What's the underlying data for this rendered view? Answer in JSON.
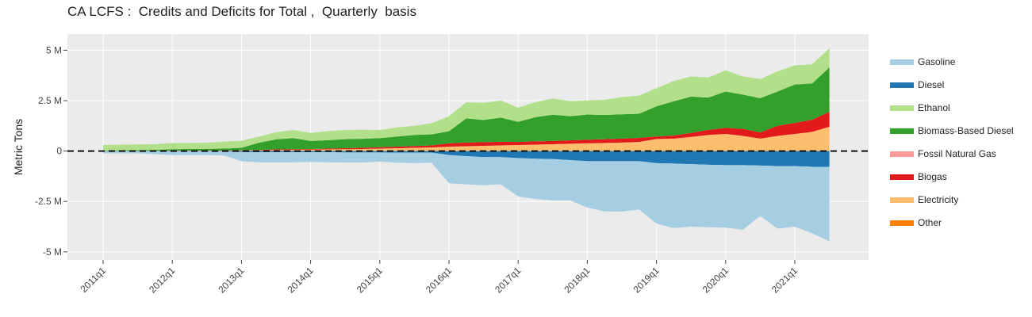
{
  "chart_data": {
    "type": "area",
    "title": "CA LCFS :  Credits and Deficits for Total ,  Quarterly  basis",
    "ylabel": "Metric Tons",
    "xlabel": "",
    "ylim": [
      -5.4,
      5.8
    ],
    "y_ticks": [
      {
        "value": 5,
        "label": "5 M"
      },
      {
        "value": 2.5,
        "label": "2.5 M"
      },
      {
        "value": 0,
        "label": "0"
      },
      {
        "value": -2.5,
        "label": "-2.5 M"
      },
      {
        "value": -5,
        "label": "-5 M"
      }
    ],
    "x_tick_labels": [
      "2011q1",
      "2012q1",
      "2013q1",
      "2014q1",
      "2015q1",
      "2016q1",
      "2017q1",
      "2018q1",
      "2019q1",
      "2020q1",
      "2021q1"
    ],
    "x": [
      "2011q1",
      "2011q2",
      "2011q3",
      "2011q4",
      "2012q1",
      "2012q2",
      "2012q3",
      "2012q4",
      "2013q1",
      "2013q2",
      "2013q3",
      "2013q4",
      "2014q1",
      "2014q2",
      "2014q3",
      "2014q4",
      "2015q1",
      "2015q2",
      "2015q3",
      "2015q4",
      "2016q1",
      "2016q2",
      "2016q3",
      "2016q4",
      "2017q1",
      "2017q2",
      "2017q3",
      "2017q4",
      "2018q1",
      "2018q2",
      "2018q3",
      "2018q4",
      "2019q1",
      "2019q2",
      "2019q3",
      "2019q4",
      "2020q1",
      "2020q2",
      "2020q3",
      "2020q4",
      "2021q1",
      "2021q2",
      "2021q3"
    ],
    "zero_line": "dashed",
    "grid": true,
    "legend_position": "right",
    "credit_series": [
      {
        "name": "Electricity",
        "color": "#fdbf6f",
        "values": [
          0.01,
          0.01,
          0.01,
          0.01,
          0.02,
          0.02,
          0.02,
          0.02,
          0.03,
          0.04,
          0.05,
          0.06,
          0.07,
          0.08,
          0.09,
          0.1,
          0.12,
          0.14,
          0.16,
          0.18,
          0.22,
          0.24,
          0.26,
          0.28,
          0.3,
          0.32,
          0.34,
          0.36,
          0.38,
          0.4,
          0.42,
          0.45,
          0.6,
          0.62,
          0.7,
          0.8,
          0.85,
          0.75,
          0.62,
          0.75,
          0.85,
          0.95,
          1.2
        ]
      },
      {
        "name": "Biogas",
        "color": "#e31a1c",
        "values": [
          0.0,
          0.0,
          0.0,
          0.0,
          0.01,
          0.01,
          0.01,
          0.01,
          0.01,
          0.02,
          0.03,
          0.03,
          0.03,
          0.04,
          0.05,
          0.06,
          0.07,
          0.08,
          0.09,
          0.1,
          0.16,
          0.18,
          0.18,
          0.18,
          0.15,
          0.16,
          0.16,
          0.17,
          0.18,
          0.19,
          0.2,
          0.2,
          0.12,
          0.15,
          0.2,
          0.25,
          0.3,
          0.35,
          0.3,
          0.5,
          0.55,
          0.6,
          0.75
        ]
      },
      {
        "name": "Biomass-Based Diesel",
        "color": "#33a02c",
        "values": [
          0.02,
          0.03,
          0.04,
          0.05,
          0.06,
          0.07,
          0.08,
          0.09,
          0.12,
          0.35,
          0.5,
          0.55,
          0.4,
          0.42,
          0.45,
          0.45,
          0.45,
          0.5,
          0.55,
          0.55,
          0.6,
          1.2,
          1.1,
          1.2,
          1.0,
          1.2,
          1.3,
          1.2,
          1.25,
          1.2,
          1.2,
          1.2,
          1.5,
          1.7,
          1.8,
          1.6,
          1.8,
          1.7,
          1.7,
          1.7,
          1.9,
          1.8,
          2.2
        ]
      },
      {
        "name": "Ethanol",
        "color": "#b2df8a",
        "values": [
          0.27,
          0.28,
          0.28,
          0.28,
          0.3,
          0.3,
          0.3,
          0.35,
          0.35,
          0.3,
          0.35,
          0.4,
          0.4,
          0.45,
          0.45,
          0.45,
          0.4,
          0.45,
          0.45,
          0.55,
          0.75,
          0.8,
          0.85,
          0.85,
          0.7,
          0.75,
          0.8,
          0.75,
          0.7,
          0.75,
          0.85,
          0.9,
          0.9,
          1.0,
          1.0,
          1.0,
          1.05,
          0.9,
          0.95,
          1.0,
          0.95,
          0.95,
          0.95
        ]
      }
    ],
    "deficit_series": [
      {
        "name": "Diesel",
        "color": "#1f78b4",
        "values": [
          -0.01,
          -0.01,
          -0.01,
          -0.01,
          -0.02,
          -0.02,
          -0.02,
          -0.02,
          -0.05,
          -0.06,
          -0.06,
          -0.06,
          -0.06,
          -0.06,
          -0.07,
          -0.07,
          -0.07,
          -0.08,
          -0.08,
          -0.08,
          -0.2,
          -0.25,
          -0.3,
          -0.3,
          -0.35,
          -0.38,
          -0.4,
          -0.45,
          -0.5,
          -0.5,
          -0.5,
          -0.5,
          -0.6,
          -0.62,
          -0.65,
          -0.68,
          -0.7,
          -0.7,
          -0.72,
          -0.75,
          -0.75,
          -0.78,
          -0.78
        ]
      },
      {
        "name": "Gasoline",
        "color": "#a6cee3",
        "values": [
          -0.1,
          -0.1,
          -0.1,
          -0.15,
          -0.18,
          -0.18,
          -0.18,
          -0.2,
          -0.45,
          -0.5,
          -0.5,
          -0.5,
          -0.48,
          -0.5,
          -0.5,
          -0.5,
          -0.45,
          -0.5,
          -0.52,
          -0.5,
          -1.4,
          -1.4,
          -1.4,
          -1.35,
          -1.9,
          -2.0,
          -2.05,
          -2.0,
          -2.3,
          -2.5,
          -2.5,
          -2.4,
          -3.0,
          -3.2,
          -3.1,
          -3.1,
          -3.1,
          -3.2,
          -2.5,
          -3.1,
          -3.0,
          -3.3,
          -3.7
        ]
      },
      {
        "name": "Fossil Natural Gas",
        "color": "#fb9a99",
        "values": [
          0,
          0,
          0,
          0,
          0,
          0,
          0,
          0,
          0,
          0,
          0,
          0,
          0,
          0,
          0,
          0,
          0,
          0,
          0,
          0,
          0,
          0,
          0,
          0,
          0,
          0,
          0,
          0,
          0,
          0,
          0,
          0,
          0,
          0,
          0,
          0,
          0,
          0,
          0,
          0,
          0,
          0,
          0
        ]
      },
      {
        "name": "Other",
        "color": "#ff7f00",
        "values": [
          0,
          0,
          0,
          0,
          0,
          0,
          0,
          0,
          0,
          0,
          0,
          0,
          0,
          0,
          0,
          0,
          0,
          0,
          0,
          0,
          0,
          0,
          0,
          0,
          0,
          0,
          0,
          0,
          0,
          0,
          0,
          0,
          0,
          0,
          0,
          0,
          0,
          0,
          0,
          0,
          0,
          0,
          0
        ]
      }
    ],
    "legend": [
      {
        "name": "Gasoline",
        "color": "#a6cee3"
      },
      {
        "name": "Diesel",
        "color": "#1f78b4"
      },
      {
        "name": "Ethanol",
        "color": "#b2df8a"
      },
      {
        "name": "Biomass-Based Diesel",
        "color": "#33a02c"
      },
      {
        "name": "Fossil Natural Gas",
        "color": "#fb9a99"
      },
      {
        "name": "Biogas",
        "color": "#e31a1c"
      },
      {
        "name": "Electricity",
        "color": "#fdbf6f"
      },
      {
        "name": "Other",
        "color": "#ff7f00"
      }
    ]
  }
}
